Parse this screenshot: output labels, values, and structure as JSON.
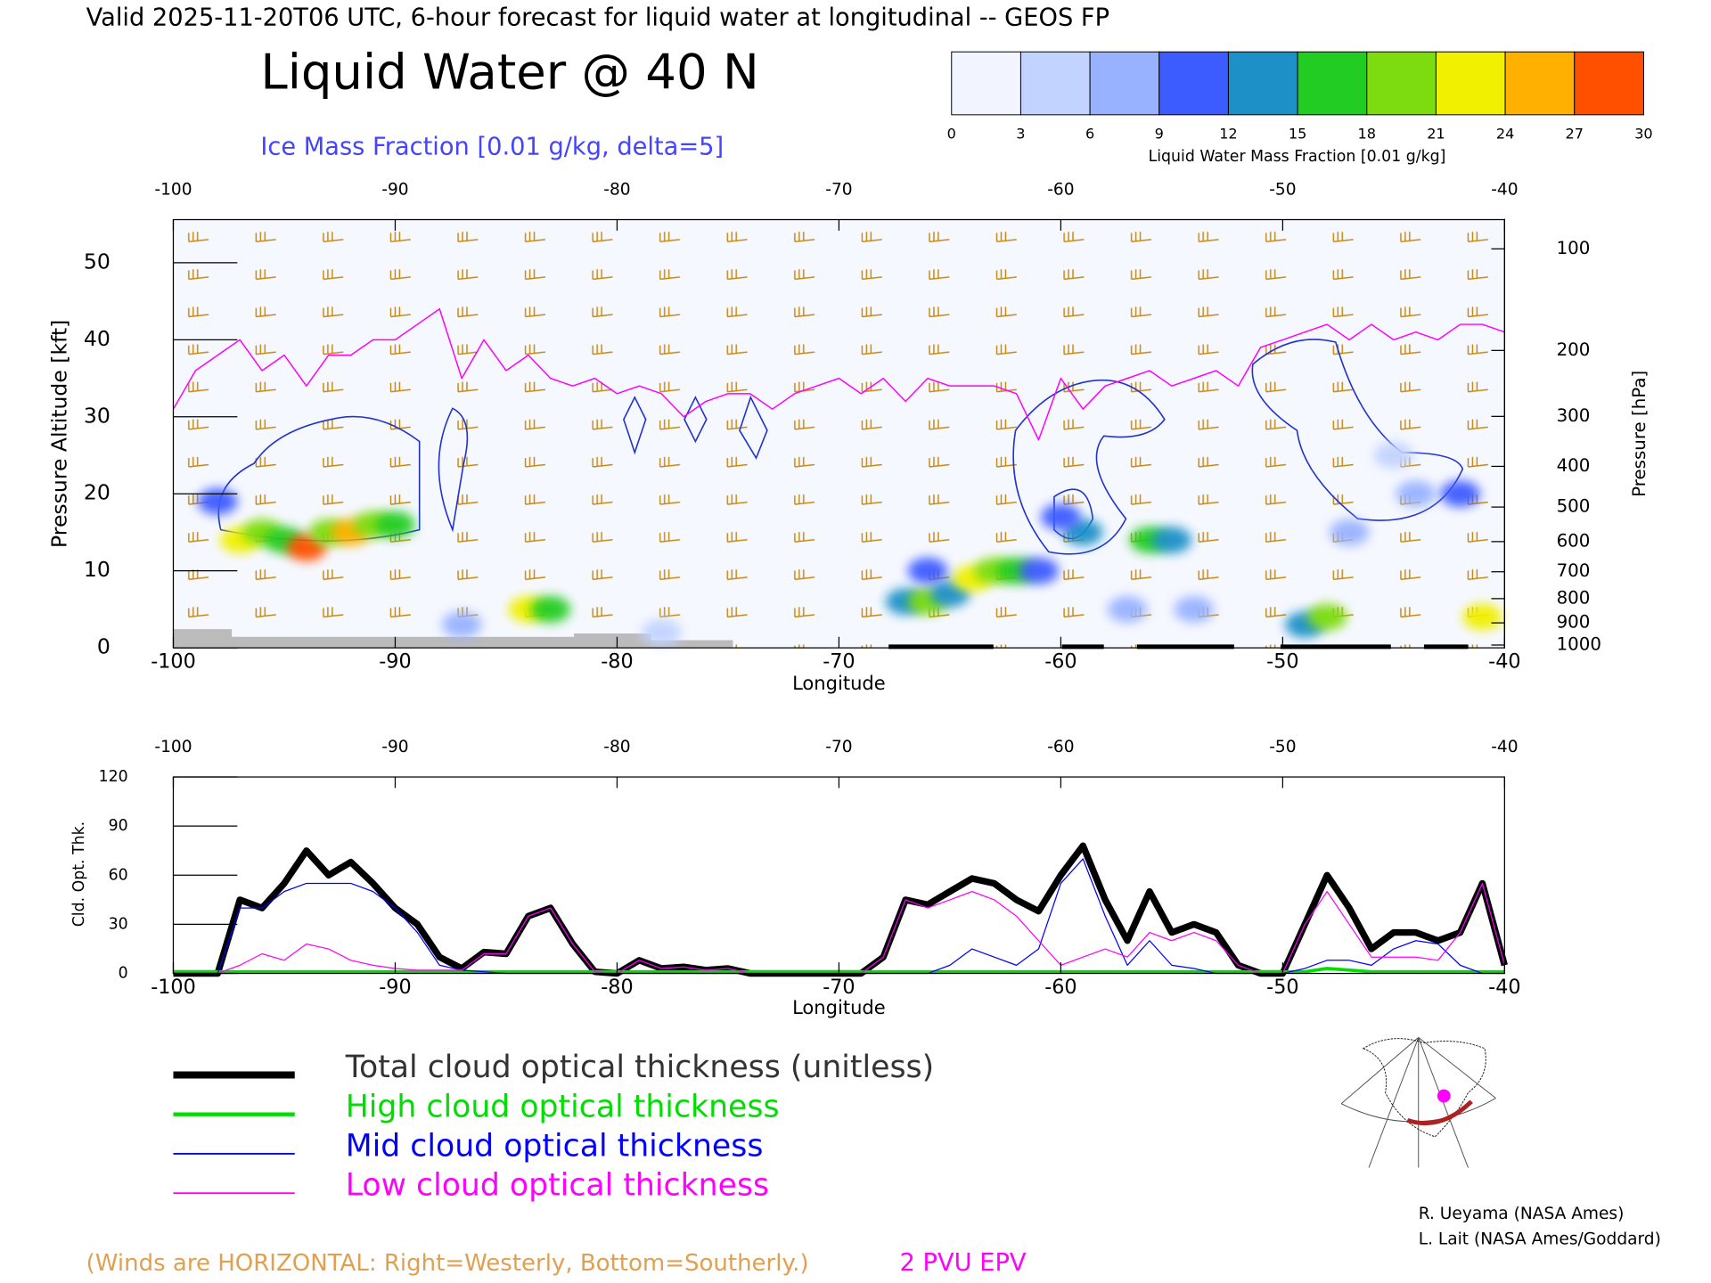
{
  "header": "Valid 2025-11-20T06 UTC, 6-hour forecast for liquid water at longitudinal -- GEOS FP",
  "credits": [
    "R. Ueyama (NASA Ames)",
    "L. Lait (NASA Ames/Goddard)"
  ],
  "chart_data": [
    {
      "type": "heatmap",
      "title": "Liquid Water @ 40 N",
      "subtitle": "Ice Mass Fraction [0.01 g/kg, delta=5]",
      "xlabel": "Longitude",
      "ylabel": "Pressure Altitude [kft]",
      "y2label": "Pressure [hPa]",
      "annotation": "(Winds are HORIZONTAL: Right=Westerly, Bottom=Southerly.)",
      "xlim": [
        -100,
        -40
      ],
      "xticks": [
        -100,
        -90,
        -80,
        -70,
        -60,
        -50,
        -40
      ],
      "ylim": [
        0,
        55.6
      ],
      "yticks": [
        0,
        10,
        20,
        30,
        40,
        50
      ],
      "y2lim": [
        1013.25,
        80
      ],
      "y2scale": "pressure-altitude",
      "y2ticks": [
        100,
        200,
        300,
        400,
        500,
        600,
        700,
        800,
        900,
        1000
      ],
      "x": [
        -100,
        -99,
        -98,
        -97,
        -96,
        -95,
        -94,
        -93,
        -92,
        -91,
        -90,
        -89,
        -88,
        -87,
        -86,
        -85,
        -84,
        -83,
        -82,
        -81,
        -80,
        -79,
        -78,
        -77,
        -76,
        -75,
        -74,
        -73,
        -72,
        -71,
        -70,
        -69,
        -68,
        -67,
        -66,
        -65,
        -64,
        -63,
        -62,
        -61,
        -60,
        -59,
        -58,
        -57,
        -56,
        -55,
        -54,
        -53,
        -52,
        -51,
        -50,
        -49,
        -48,
        -47,
        -46,
        -45,
        -44,
        -43,
        -42,
        -41,
        -40
      ],
      "series": [
        {
          "name": "2 PVU EPV",
          "color": "#ff00ff",
          "values": [
            31,
            36,
            38,
            40,
            36,
            38,
            34,
            38,
            38,
            40,
            40,
            42,
            44,
            35,
            40,
            36,
            38,
            35,
            34,
            35,
            33,
            34,
            33,
            30,
            32,
            33,
            33,
            31,
            33,
            34,
            35,
            33,
            35,
            32,
            35,
            34,
            34,
            34,
            33,
            27,
            35,
            31,
            34,
            35,
            36,
            34,
            35,
            36,
            34,
            39,
            40,
            41,
            42,
            40,
            42,
            40,
            41,
            40,
            42,
            42,
            41
          ]
        }
      ],
      "cells": {
        "x": [
          -97,
          -96,
          -95,
          -94,
          -93,
          -92,
          -91,
          -90,
          -98,
          -84,
          -83,
          -87,
          -67,
          -66,
          -65,
          -64,
          -63,
          -62,
          -61,
          -66,
          -59,
          -60,
          -56,
          -55,
          -57,
          -54,
          -49,
          -48,
          -41,
          -47,
          -44,
          -42,
          -45,
          -78
        ],
        "y": [
          14,
          15,
          14,
          13,
          15,
          15,
          16,
          16,
          19,
          5,
          5,
          3,
          6,
          6,
          7,
          9,
          10,
          10,
          10,
          10,
          15,
          17,
          14,
          14,
          5,
          5,
          3,
          4,
          4,
          15,
          20,
          20,
          25,
          2
        ],
        "values": [
          22,
          18,
          15,
          27,
          20,
          24,
          18,
          15,
          10,
          22,
          15,
          8,
          12,
          18,
          14,
          22,
          20,
          16,
          10,
          10,
          12,
          10,
          15,
          12,
          6,
          6,
          12,
          18,
          22,
          8,
          7,
          9,
          5,
          5
        ]
      },
      "colorbar": {
        "label": "Liquid Water Mass Fraction [0.01 g/kg]",
        "ticks": [
          0,
          3,
          6,
          9,
          12,
          15,
          18,
          21,
          24,
          27,
          30
        ],
        "colors": [
          "#f2f5ff",
          "#c2d3ff",
          "#98b2ff",
          "#3c5cff",
          "#1e90c8",
          "#22cc22",
          "#7ddc10",
          "#f0f000",
          "#ffb000",
          "#ff5000"
        ]
      }
    },
    {
      "type": "line",
      "ylabel": "Cld. Opt. Thk.",
      "xlabel": "Longitude",
      "xlim": [
        -100,
        -40
      ],
      "xticks": [
        -100,
        -90,
        -80,
        -70,
        -60,
        -50,
        -40
      ],
      "ylim": [
        0,
        120
      ],
      "yticks": [
        0,
        30,
        60,
        90,
        120
      ],
      "x": [
        -100,
        -99,
        -98,
        -97,
        -96,
        -95,
        -94,
        -93,
        -92,
        -91,
        -90,
        -89,
        -88,
        -87,
        -86,
        -85,
        -84,
        -83,
        -82,
        -81,
        -80,
        -79,
        -78,
        -77,
        -76,
        -75,
        -74,
        -73,
        -72,
        -71,
        -70,
        -69,
        -68,
        -67,
        -66,
        -65,
        -64,
        -63,
        -62,
        -61,
        -60,
        -59,
        -58,
        -57,
        -56,
        -55,
        -54,
        -53,
        -52,
        -51,
        -50,
        -49,
        -48,
        -47,
        -46,
        -45,
        -44,
        -43,
        -42,
        -41,
        -40
      ],
      "series": [
        {
          "name": "Total cloud optical thickness (unitless)",
          "color": "#000000",
          "linewidth": 6,
          "values": [
            0,
            0,
            0,
            45,
            40,
            55,
            75,
            60,
            68,
            55,
            40,
            30,
            10,
            3,
            13,
            12,
            35,
            40,
            18,
            1,
            0,
            8,
            3,
            4,
            2,
            3,
            0,
            0,
            0,
            0,
            0,
            0,
            10,
            45,
            42,
            50,
            58,
            55,
            45,
            38,
            60,
            78,
            45,
            20,
            50,
            25,
            30,
            25,
            5,
            0,
            0,
            30,
            60,
            40,
            15,
            25,
            25,
            20,
            25,
            55,
            5
          ]
        },
        {
          "name": "High cloud optical thickness",
          "color": "#00dd00",
          "linewidth": 3,
          "values": [
            1,
            1,
            1,
            1,
            1,
            1,
            1,
            1,
            1,
            1,
            1,
            1,
            1,
            1,
            1,
            1,
            1,
            1,
            1,
            1,
            1,
            1,
            1,
            1,
            1,
            1,
            1,
            1,
            1,
            1,
            1,
            1,
            1,
            1,
            1,
            1,
            1,
            1,
            1,
            1,
            1,
            1,
            1,
            1,
            1,
            1,
            1,
            1,
            1,
            1,
            1,
            1,
            3,
            2,
            1,
            1,
            1,
            1,
            1,
            1,
            1
          ]
        },
        {
          "name": "Mid cloud optical thickness",
          "color": "#0000ff",
          "linewidth": 1,
          "values": [
            0,
            0,
            0,
            40,
            40,
            50,
            55,
            55,
            55,
            50,
            40,
            25,
            5,
            2,
            1,
            0,
            0,
            0,
            0,
            0,
            0,
            0,
            0,
            0,
            0,
            0,
            0,
            0,
            0,
            0,
            0,
            0,
            0,
            0,
            0,
            5,
            15,
            10,
            5,
            15,
            55,
            70,
            35,
            5,
            20,
            5,
            3,
            0,
            0,
            0,
            0,
            3,
            8,
            8,
            5,
            15,
            20,
            18,
            5,
            0,
            0
          ]
        },
        {
          "name": "Low cloud optical thickness",
          "color": "#ff00ff",
          "linewidth": 1,
          "values": [
            0,
            0,
            0,
            5,
            12,
            8,
            18,
            15,
            8,
            5,
            3,
            2,
            2,
            2,
            12,
            12,
            35,
            40,
            18,
            1,
            0,
            8,
            3,
            4,
            2,
            3,
            0,
            0,
            0,
            0,
            0,
            0,
            10,
            45,
            40,
            45,
            50,
            45,
            35,
            20,
            5,
            10,
            15,
            10,
            25,
            20,
            25,
            20,
            5,
            0,
            0,
            30,
            50,
            30,
            10,
            10,
            10,
            8,
            25,
            55,
            5
          ]
        }
      ]
    }
  ]
}
